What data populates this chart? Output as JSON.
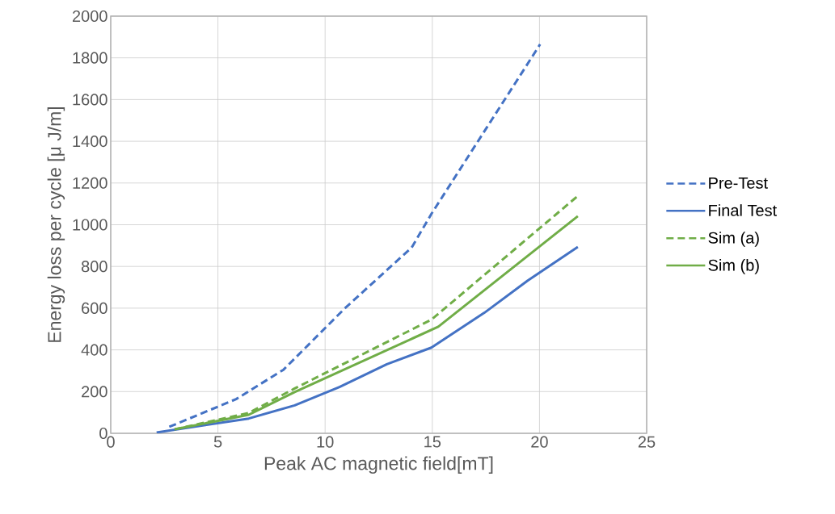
{
  "chart_data": {
    "type": "line",
    "xlabel": "Peak AC magnetic field[mT]",
    "ylabel": "Energy loss per cycle [μ J/m]",
    "xlim": [
      0,
      25
    ],
    "xticks": [
      0,
      5,
      10,
      15,
      20,
      25
    ],
    "ylim": [
      0,
      2000
    ],
    "yticks": [
      0,
      200,
      400,
      600,
      800,
      1000,
      1200,
      1400,
      1600,
      1800,
      2000
    ],
    "grid": true,
    "legend": "right",
    "marker": "none",
    "series": [
      {
        "name": "Pre-Test",
        "color": "#4472c4",
        "line_style": "dashed",
        "x": [
          2.73,
          5.85,
          8.06,
          10.93,
          14.04,
          14.96,
          20.03
        ],
        "values": [
          31,
          164,
          305,
          600,
          891,
          1052,
          1865
        ]
      },
      {
        "name": "Final Test",
        "color": "#4472c4",
        "line_style": "solid",
        "x": [
          2.14,
          6.44,
          8.58,
          10.67,
          12.88,
          14.96,
          17.43,
          19.45,
          21.79
        ],
        "values": [
          4,
          71,
          134,
          222,
          331,
          411,
          578,
          732,
          894
        ]
      },
      {
        "name": "Sim (a)",
        "color": "#70ad47",
        "line_style": "dashed",
        "x": [
          2.98,
          6.44,
          8.58,
          14.96,
          21.79
        ],
        "values": [
          19,
          98,
          215,
          545,
          1138
        ]
      },
      {
        "name": "Sim (b)",
        "color": "#70ad47",
        "line_style": "solid",
        "x": [
          2.98,
          6.44,
          8.58,
          15.28,
          21.79
        ],
        "values": [
          19,
          89,
          198,
          511,
          1041
        ]
      }
    ]
  }
}
